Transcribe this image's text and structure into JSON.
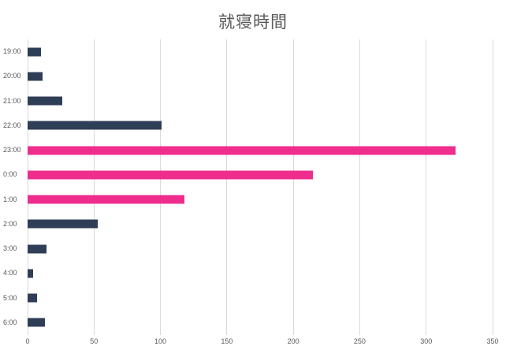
{
  "colors": {
    "title_text": "#595959",
    "axis_text": "#595959",
    "gridline": "#d9d9d9",
    "bar_navy": "#2e3e56",
    "bar_pink": "#ee2d8d",
    "background": "#ffffff"
  },
  "chart_data": {
    "type": "bar",
    "orientation": "horizontal",
    "title": "就寝時間",
    "xlabel": "",
    "ylabel": "",
    "categories": [
      "19:00",
      "20:00",
      "21:00",
      "22:00",
      "23:00",
      "0:00",
      "1:00",
      "2:00",
      "3:00",
      "4:00",
      "5:00",
      "6:00"
    ],
    "values": [
      10,
      11,
      26,
      101,
      322,
      215,
      118,
      53,
      14,
      4,
      7,
      13
    ],
    "bar_colors": [
      "#2e3e56",
      "#2e3e56",
      "#2e3e56",
      "#2e3e56",
      "#ee2d8d",
      "#ee2d8d",
      "#ee2d8d",
      "#2e3e56",
      "#2e3e56",
      "#2e3e56",
      "#2e3e56",
      "#2e3e56"
    ],
    "xlim": [
      0,
      350
    ],
    "xticks": [
      0,
      50,
      100,
      150,
      200,
      250,
      300,
      350
    ],
    "grid": "vertical",
    "legend": "none"
  }
}
